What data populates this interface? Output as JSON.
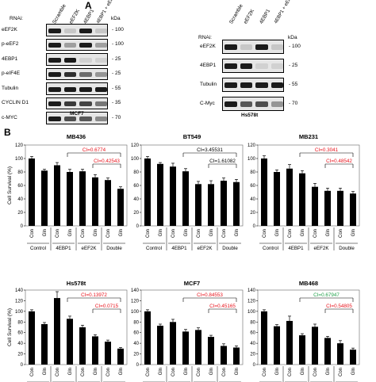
{
  "panelA": {
    "letter": "A",
    "blots": [
      {
        "caption": "MCF7",
        "rnai_label": "RNAi:",
        "lanes": [
          "Scramble",
          "eEF2K",
          "4EBP1",
          "4EBP1 + eEF2K"
        ],
        "kda_label": "kDa",
        "rows": [
          {
            "label": "eEF2K",
            "mw": "100"
          },
          {
            "label": "p-eEF2",
            "mw": "100"
          },
          {
            "label": "4EBP1",
            "mw": "25"
          },
          {
            "label": "p-eIF4E",
            "mw": "25"
          },
          {
            "label": "Tubulin",
            "mw": "55"
          },
          {
            "label": "CYCLIN D1",
            "mw": "35"
          },
          {
            "label": "c-MYC",
            "mw": "70"
          }
        ]
      },
      {
        "caption": "Hs578t",
        "rnai_label": "RNAi:",
        "lanes": [
          "Scramble",
          "eEF2K",
          "4EBP1",
          "4EBP1 + eEF2K"
        ],
        "kda_label": "kDa",
        "rows": [
          {
            "label": "eEF2K",
            "mw": "100"
          },
          {
            "label": "4EBP1",
            "mw": "25"
          },
          {
            "label": "Tubulin",
            "mw": "55"
          },
          {
            "label": "C-Myc",
            "mw": "70"
          }
        ]
      }
    ]
  },
  "panelB": {
    "letter": "B",
    "ylabel": "Cell Survival (%)",
    "bar_labels": [
      "Con",
      "Gln",
      "Con",
      "Gln",
      "Con",
      "Gln",
      "Con",
      "Gln"
    ],
    "groups": [
      "Control",
      "4EBP1",
      "eEF2K",
      "Double"
    ]
  },
  "chart_data": [
    {
      "type": "bar",
      "title": "MB436",
      "ylabel": "Cell Survival (%)",
      "ylim": [
        0,
        120
      ],
      "yticks": [
        0,
        20,
        40,
        60,
        80,
        100,
        120
      ],
      "values": [
        100,
        82,
        90,
        80,
        81,
        72,
        68,
        55
      ],
      "errors": [
        3,
        2,
        4,
        4,
        3,
        4,
        3,
        3
      ],
      "ci": [
        {
          "text": "CI=0.6774",
          "color": "#e8121b",
          "from": 3,
          "to": 7
        },
        {
          "text": "CI=0.42543",
          "color": "#e8121b",
          "from": 5,
          "to": 7
        }
      ]
    },
    {
      "type": "bar",
      "title": "BT549",
      "ylabel": "",
      "ylim": [
        0,
        120
      ],
      "yticks": [
        0,
        20,
        40,
        60,
        80,
        100,
        120
      ],
      "values": [
        100,
        92,
        88,
        81,
        62,
        62,
        67,
        65
      ],
      "errors": [
        3,
        2,
        5,
        4,
        4,
        5,
        4,
        4
      ],
      "ci": [
        {
          "text": "CI=3.45531",
          "color": "#000000",
          "from": 3,
          "to": 7
        },
        {
          "text": "CI=1.61082",
          "color": "#000000",
          "from": 5,
          "to": 7
        }
      ]
    },
    {
      "type": "bar",
      "title": "MB231",
      "ylabel": "",
      "ylim": [
        0,
        120
      ],
      "yticks": [
        0,
        20,
        40,
        60,
        80,
        100,
        120
      ],
      "values": [
        100,
        80,
        85,
        78,
        58,
        52,
        52,
        48
      ],
      "errors": [
        4,
        3,
        6,
        4,
        5,
        4,
        4,
        3
      ],
      "ci": [
        {
          "text": "CI=0.3041",
          "color": "#e8121b",
          "from": 3,
          "to": 7
        },
        {
          "text": "CI=0.48542",
          "color": "#e8121b",
          "from": 5,
          "to": 7
        }
      ]
    },
    {
      "type": "bar",
      "title": "Hs578t",
      "ylabel": "Cell Survival (%)",
      "ylim": [
        0,
        140
      ],
      "yticks": [
        0,
        20,
        40,
        60,
        80,
        100,
        120,
        140
      ],
      "values": [
        100,
        76,
        125,
        86,
        70,
        53,
        43,
        30
      ],
      "errors": [
        3,
        3,
        12,
        5,
        4,
        3,
        3,
        2
      ],
      "ci": [
        {
          "text": "CI=0.13972",
          "color": "#e8121b",
          "from": 3,
          "to": 7
        },
        {
          "text": "CI=0.0715",
          "color": "#e8121b",
          "from": 5,
          "to": 7
        }
      ]
    },
    {
      "type": "bar",
      "title": "MCF7",
      "ylabel": "",
      "ylim": [
        0,
        140
      ],
      "yticks": [
        0,
        20,
        40,
        60,
        80,
        100,
        120,
        140
      ],
      "values": [
        100,
        73,
        80,
        62,
        65,
        52,
        35,
        32
      ],
      "errors": [
        3,
        3,
        5,
        4,
        4,
        3,
        4,
        3
      ],
      "ci": [
        {
          "text": "CI=0.84553",
          "color": "#e8121b",
          "from": 3,
          "to": 7
        },
        {
          "text": "CI=0.45165",
          "color": "#e8121b",
          "from": 5,
          "to": 7
        }
      ]
    },
    {
      "type": "bar",
      "title": "MB468",
      "ylabel": "",
      "ylim": [
        0,
        140
      ],
      "yticks": [
        0,
        20,
        40,
        60,
        80,
        100,
        120,
        140
      ],
      "values": [
        100,
        72,
        82,
        55,
        71,
        50,
        40,
        28
      ],
      "errors": [
        3,
        3,
        9,
        3,
        5,
        3,
        5,
        3
      ],
      "ci": [
        {
          "text": "CI=0.67947",
          "color": "#22a14b",
          "from": 3,
          "to": 7
        },
        {
          "text": "CI=0.54805",
          "color": "#e8121b",
          "from": 5,
          "to": 7
        }
      ]
    }
  ]
}
